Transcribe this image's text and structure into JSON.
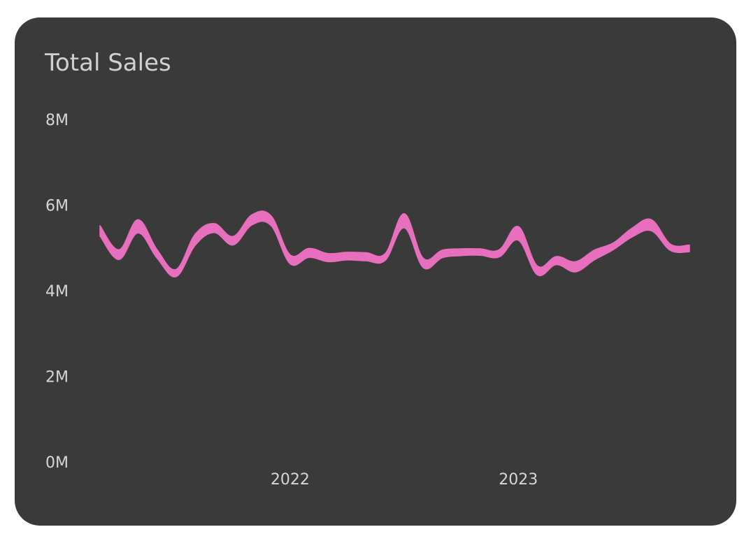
{
  "chart_data": {
    "type": "area",
    "title": "Total Sales",
    "xlabel": "",
    "ylabel": "",
    "ylim": [
      0,
      8000000
    ],
    "yticks": [
      {
        "value": 0,
        "label": "0M"
      },
      {
        "value": 2000000,
        "label": "2M"
      },
      {
        "value": 4000000,
        "label": "4M"
      },
      {
        "value": 6000000,
        "label": "6M"
      },
      {
        "value": 8000000,
        "label": "8M"
      }
    ],
    "xticks": [
      {
        "value": "2022",
        "label": "2022"
      },
      {
        "value": "2023",
        "label": "2023"
      }
    ],
    "grid": false,
    "legend": "none",
    "colors": {
      "band": "#e86fbd",
      "background": "#3a3a3a",
      "text": "#d6d6d6"
    },
    "series": [
      {
        "x": [
          "2021-03",
          "2021-04",
          "2021-05",
          "2021-06",
          "2021-07",
          "2021-08",
          "2021-09",
          "2021-10",
          "2021-11",
          "2021-12",
          "2022-01",
          "2022-02",
          "2022-03",
          "2022-04",
          "2022-05",
          "2022-06",
          "2022-07",
          "2022-08",
          "2022-09",
          "2022-10",
          "2022-11",
          "2022-12",
          "2023-01",
          "2023-02",
          "2023-03",
          "2023-04",
          "2023-05",
          "2023-06",
          "2023-07",
          "2023-08",
          "2023-09",
          "2023-10"
        ],
        "upper": [
          5520000,
          4960000,
          5660000,
          4960000,
          4500000,
          5320000,
          5570000,
          5270000,
          5780000,
          5750000,
          4840000,
          4990000,
          4870000,
          4900000,
          4890000,
          4870000,
          5800000,
          4760000,
          4950000,
          4980000,
          4980000,
          4960000,
          5500000,
          4580000,
          4800000,
          4680000,
          4950000,
          5120000,
          5470000,
          5660000,
          5090000,
          5070000
        ],
        "lower": [
          5280000,
          4730000,
          5350000,
          4760000,
          4330000,
          5060000,
          5360000,
          5070000,
          5540000,
          5520000,
          4630000,
          4780000,
          4680000,
          4720000,
          4700000,
          4710000,
          5470000,
          4540000,
          4770000,
          4820000,
          4830000,
          4790000,
          5180000,
          4370000,
          4610000,
          4440000,
          4720000,
          4960000,
          5260000,
          5400000,
          4940000,
          4910000
        ]
      }
    ]
  }
}
